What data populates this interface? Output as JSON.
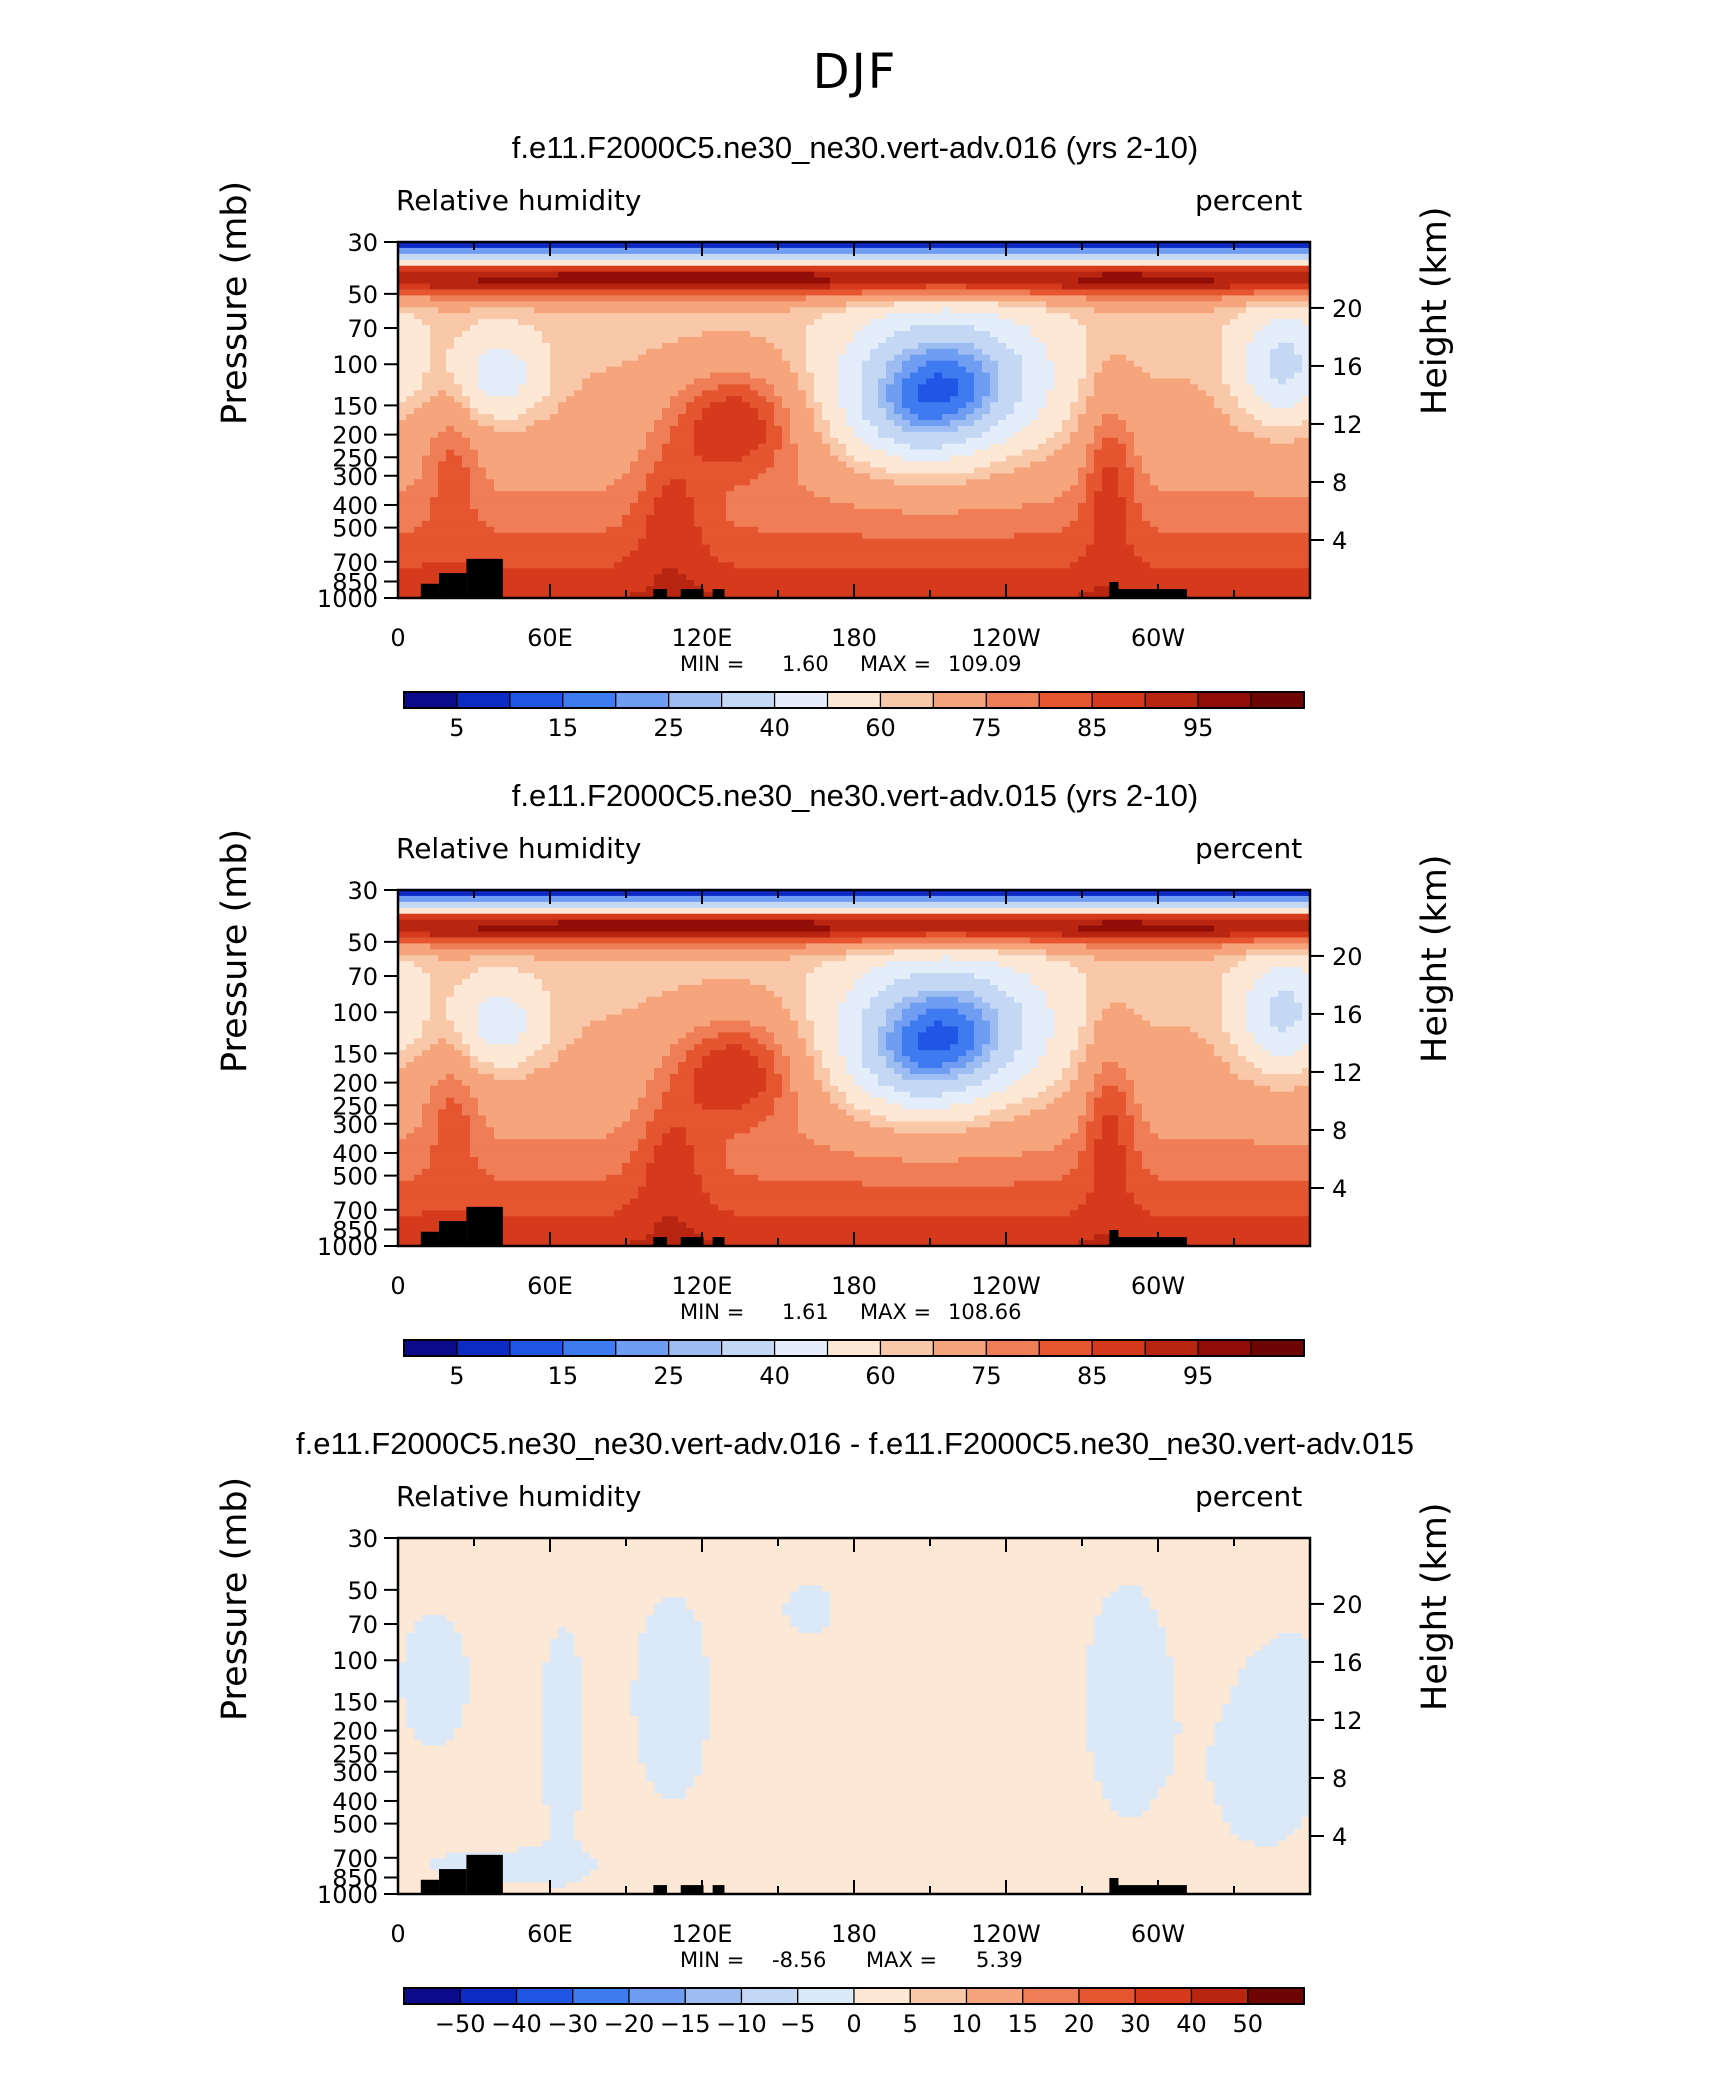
{
  "page": {
    "title": "DJF"
  },
  "chart_data": [
    {
      "type": "heatmap",
      "title": "f.e11.F2000C5.ne30_ne30.vert-adv.016 (yrs 2-10)",
      "variable": "Relative humidity",
      "units": "percent",
      "ylabel": "Pressure (mb)",
      "ylabel_right": "Height (km)",
      "x_ticks": [
        "0",
        "60E",
        "120E",
        "180",
        "120W",
        "60W"
      ],
      "y_ticks": [
        "30",
        "50",
        "70",
        "100",
        "150",
        "200",
        "250",
        "300",
        "400",
        "500",
        "700",
        "850",
        "1000"
      ],
      "y_right_ticks": [
        "20",
        "16",
        "12",
        "8",
        "4"
      ],
      "min_label": "MIN =",
      "min_value": "1.60",
      "max_label": "MAX =",
      "max_value": "109.09",
      "colorbar_labels": [
        "5",
        "15",
        "25",
        "40",
        "60",
        "75",
        "85",
        "95"
      ],
      "colorbar_colors": [
        "#0a0a8a",
        "#0c2bc4",
        "#1f56e6",
        "#3f7bf0",
        "#6f9df2",
        "#9cbcf2",
        "#c4d8f4",
        "#e3eefa",
        "#fde8d6",
        "#f8c8a8",
        "#f5a47c",
        "#ef7d56",
        "#e5552f",
        "#d63a1c",
        "#b82510",
        "#900e07",
        "#6e0404"
      ],
      "pattern": "abs"
    },
    {
      "type": "heatmap",
      "title": "f.e11.F2000C5.ne30_ne30.vert-adv.015 (yrs 2-10)",
      "variable": "Relative humidity",
      "units": "percent",
      "ylabel": "Pressure (mb)",
      "ylabel_right": "Height (km)",
      "x_ticks": [
        "0",
        "60E",
        "120E",
        "180",
        "120W",
        "60W"
      ],
      "y_ticks": [
        "30",
        "50",
        "70",
        "100",
        "150",
        "200",
        "250",
        "300",
        "400",
        "500",
        "700",
        "850",
        "1000"
      ],
      "y_right_ticks": [
        "20",
        "16",
        "12",
        "8",
        "4"
      ],
      "min_label": "MIN =",
      "min_value": "1.61",
      "max_label": "MAX =",
      "max_value": "108.66",
      "colorbar_labels": [
        "5",
        "15",
        "25",
        "40",
        "60",
        "75",
        "85",
        "95"
      ],
      "colorbar_colors": [
        "#0a0a8a",
        "#0c2bc4",
        "#1f56e6",
        "#3f7bf0",
        "#6f9df2",
        "#9cbcf2",
        "#c4d8f4",
        "#e3eefa",
        "#fde8d6",
        "#f8c8a8",
        "#f5a47c",
        "#ef7d56",
        "#e5552f",
        "#d63a1c",
        "#b82510",
        "#900e07",
        "#6e0404"
      ],
      "pattern": "abs"
    },
    {
      "type": "heatmap",
      "title": "f.e11.F2000C5.ne30_ne30.vert-adv.016 - f.e11.F2000C5.ne30_ne30.vert-adv.015",
      "variable": "Relative humidity",
      "units": "percent",
      "ylabel": "Pressure (mb)",
      "ylabel_right": "Height (km)",
      "x_ticks": [
        "0",
        "60E",
        "120E",
        "180",
        "120W",
        "60W"
      ],
      "y_ticks": [
        "30",
        "50",
        "70",
        "100",
        "150",
        "200",
        "250",
        "300",
        "400",
        "500",
        "700",
        "850",
        "1000"
      ],
      "y_right_ticks": [
        "20",
        "16",
        "12",
        "8",
        "4"
      ],
      "min_label": "MIN =",
      "min_value": "-8.56",
      "max_label": "MAX =",
      "max_value": "5.39",
      "colorbar_labels": [
        "−50",
        "−40",
        "−30",
        "−20",
        "−15",
        "−10",
        "−5",
        "0",
        "5",
        "10",
        "15",
        "20",
        "30",
        "40",
        "50"
      ],
      "colorbar_colors": [
        "#0a0a8a",
        "#0c2bc4",
        "#1f56e6",
        "#3f7bf0",
        "#6f9df2",
        "#9cbcf2",
        "#c4d8f4",
        "#dbe8f8",
        "#fde8d6",
        "#f8c8a8",
        "#f5a47c",
        "#ef7d56",
        "#e5552f",
        "#d63a1c",
        "#b82510",
        "#6e0404"
      ],
      "pattern": "diff"
    }
  ]
}
